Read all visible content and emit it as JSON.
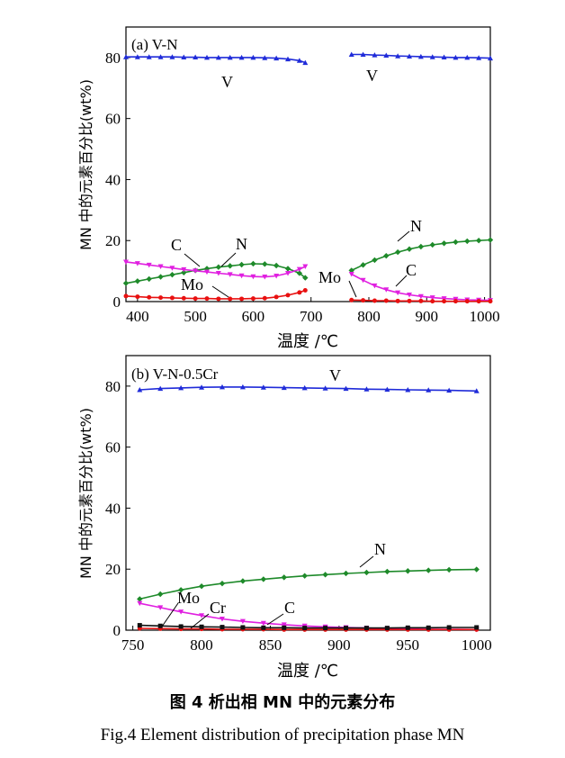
{
  "chart_data": [
    {
      "type": "line",
      "title": "(a) V-N",
      "ylabel": "MN 中的元素百分比(wt%)",
      "xlabel": "温度 /℃",
      "xlim": [
        380,
        1010
      ],
      "ylim": [
        0,
        90
      ],
      "xticks": [
        400,
        500,
        600,
        700,
        800,
        900,
        1000
      ],
      "yticks": [
        0,
        20,
        40,
        60,
        80
      ],
      "grid": false,
      "legend": "none (inline labels)",
      "series": [
        {
          "name": "V",
          "color": "#1f2bd9",
          "marker": "triangle",
          "x": [
            380,
            400,
            420,
            440,
            460,
            480,
            500,
            520,
            540,
            560,
            580,
            600,
            620,
            640,
            660,
            680,
            690,
            770,
            790,
            810,
            830,
            850,
            870,
            890,
            910,
            930,
            950,
            970,
            990,
            1010
          ],
          "y": [
            80.2,
            80.2,
            80.2,
            80.2,
            80.2,
            80.1,
            80.1,
            80.0,
            80.0,
            80.0,
            80.0,
            80.0,
            79.9,
            79.8,
            79.5,
            79.0,
            78.3,
            81.0,
            81.0,
            80.8,
            80.7,
            80.5,
            80.4,
            80.3,
            80.2,
            80.1,
            80.0,
            80.0,
            79.9,
            79.8
          ]
        },
        {
          "name": "N",
          "color": "#1e8a2a",
          "marker": "diamond",
          "x": [
            380,
            400,
            420,
            440,
            460,
            480,
            500,
            520,
            540,
            560,
            580,
            600,
            620,
            640,
            660,
            680,
            690,
            770,
            790,
            810,
            830,
            850,
            870,
            890,
            910,
            930,
            950,
            970,
            990,
            1010
          ],
          "y": [
            6.0,
            6.7,
            7.4,
            8.1,
            8.8,
            9.5,
            10.2,
            10.8,
            11.3,
            11.7,
            12.1,
            12.4,
            12.3,
            11.8,
            10.8,
            9.3,
            7.8,
            10.2,
            12.0,
            13.6,
            15.0,
            16.2,
            17.2,
            18.0,
            18.6,
            19.1,
            19.5,
            19.8,
            20.0,
            20.2
          ]
        },
        {
          "name": "C",
          "color": "#e020e0",
          "marker": "inverted-triangle",
          "x": [
            380,
            400,
            420,
            440,
            460,
            480,
            500,
            520,
            540,
            560,
            580,
            600,
            620,
            640,
            660,
            680,
            690,
            770,
            790,
            810,
            830,
            850,
            870,
            890,
            910,
            930,
            950,
            970,
            990,
            1010
          ],
          "y": [
            13.0,
            12.5,
            12.0,
            11.5,
            11.0,
            10.5,
            10.1,
            9.7,
            9.3,
            8.9,
            8.5,
            8.2,
            8.1,
            8.4,
            9.3,
            10.6,
            11.5,
            9.0,
            7.0,
            5.2,
            3.9,
            2.9,
            2.2,
            1.7,
            1.3,
            1.0,
            0.8,
            0.6,
            0.5,
            0.4
          ]
        },
        {
          "name": "Mo",
          "color": "#e81010",
          "marker": "circle",
          "x": [
            380,
            400,
            420,
            440,
            460,
            480,
            500,
            520,
            540,
            560,
            580,
            600,
            620,
            640,
            660,
            680,
            690,
            770,
            790,
            810,
            830,
            850,
            870,
            890,
            910,
            930,
            950,
            970,
            990,
            1010
          ],
          "y": [
            1.8,
            1.6,
            1.4,
            1.3,
            1.2,
            1.1,
            1.0,
            1.0,
            0.9,
            0.9,
            0.9,
            1.0,
            1.1,
            1.5,
            2.1,
            3.0,
            3.7,
            0.5,
            0.4,
            0.3,
            0.3,
            0.2,
            0.2,
            0.2,
            0.1,
            0.1,
            0.1,
            0.1,
            0.1,
            0.1
          ]
        }
      ],
      "annotations": [
        "V",
        "V",
        "C",
        "N",
        "Mo",
        "N",
        "Mo",
        "C"
      ]
    },
    {
      "type": "line",
      "title": "(b) V-N-0.5Cr",
      "ylabel": "MN 中的元素百分比(wt%)",
      "xlabel": "温度 /℃",
      "xlim": [
        745,
        1010
      ],
      "ylim": [
        0,
        90
      ],
      "xticks": [
        750,
        800,
        850,
        900,
        950,
        1000
      ],
      "yticks": [
        0,
        20,
        40,
        60,
        80
      ],
      "grid": false,
      "legend": "none (inline labels)",
      "series": [
        {
          "name": "V",
          "color": "#1f2bd9",
          "marker": "triangle",
          "x": [
            755,
            770,
            785,
            800,
            815,
            830,
            845,
            860,
            875,
            890,
            905,
            920,
            935,
            950,
            965,
            980,
            1000
          ],
          "y": [
            78.8,
            79.2,
            79.4,
            79.6,
            79.7,
            79.7,
            79.6,
            79.5,
            79.4,
            79.3,
            79.2,
            79.0,
            78.9,
            78.8,
            78.7,
            78.6,
            78.4
          ]
        },
        {
          "name": "N",
          "color": "#1e8a2a",
          "marker": "diamond",
          "x": [
            755,
            770,
            785,
            800,
            815,
            830,
            845,
            860,
            875,
            890,
            905,
            920,
            935,
            950,
            965,
            980,
            1000
          ],
          "y": [
            10.2,
            11.8,
            13.2,
            14.4,
            15.3,
            16.1,
            16.7,
            17.3,
            17.8,
            18.2,
            18.6,
            18.9,
            19.2,
            19.4,
            19.6,
            19.8,
            19.9
          ]
        },
        {
          "name": "C",
          "color": "#e020e0",
          "marker": "inverted-triangle",
          "x": [
            755,
            770,
            785,
            800,
            815,
            830,
            845,
            860,
            875,
            890,
            905,
            920,
            935,
            950,
            965,
            980,
            1000
          ],
          "y": [
            8.8,
            7.4,
            6.0,
            4.8,
            3.7,
            2.9,
            2.3,
            1.8,
            1.4,
            1.1,
            0.9,
            0.7,
            0.5,
            0.4,
            0.3,
            0.3,
            0.2
          ]
        },
        {
          "name": "Mo",
          "color": "#e81010",
          "marker": "circle",
          "x": [
            755,
            770,
            785,
            800,
            815,
            830,
            845,
            860,
            875,
            890,
            905,
            920,
            935,
            950,
            965,
            980,
            1000
          ],
          "y": [
            0.6,
            0.5,
            0.4,
            0.4,
            0.3,
            0.3,
            0.3,
            0.2,
            0.2,
            0.2,
            0.2,
            0.2,
            0.2,
            0.2,
            0.2,
            0.2,
            0.2
          ]
        },
        {
          "name": "Cr",
          "color": "#111111",
          "marker": "square",
          "x": [
            755,
            770,
            785,
            800,
            815,
            830,
            845,
            860,
            875,
            890,
            905,
            920,
            935,
            950,
            965,
            980,
            1000
          ],
          "y": [
            1.6,
            1.4,
            1.2,
            1.1,
            1.0,
            0.9,
            0.8,
            0.8,
            0.7,
            0.7,
            0.7,
            0.7,
            0.7,
            0.8,
            0.8,
            0.9,
            0.9
          ]
        }
      ],
      "annotations": [
        "V",
        "N",
        "Mo",
        "Cr",
        "C"
      ]
    }
  ],
  "caption": {
    "zh": "图 4  析出相 MN 中的元素分布",
    "en": "Fig.4  Element distribution of precipitation phase MN"
  }
}
